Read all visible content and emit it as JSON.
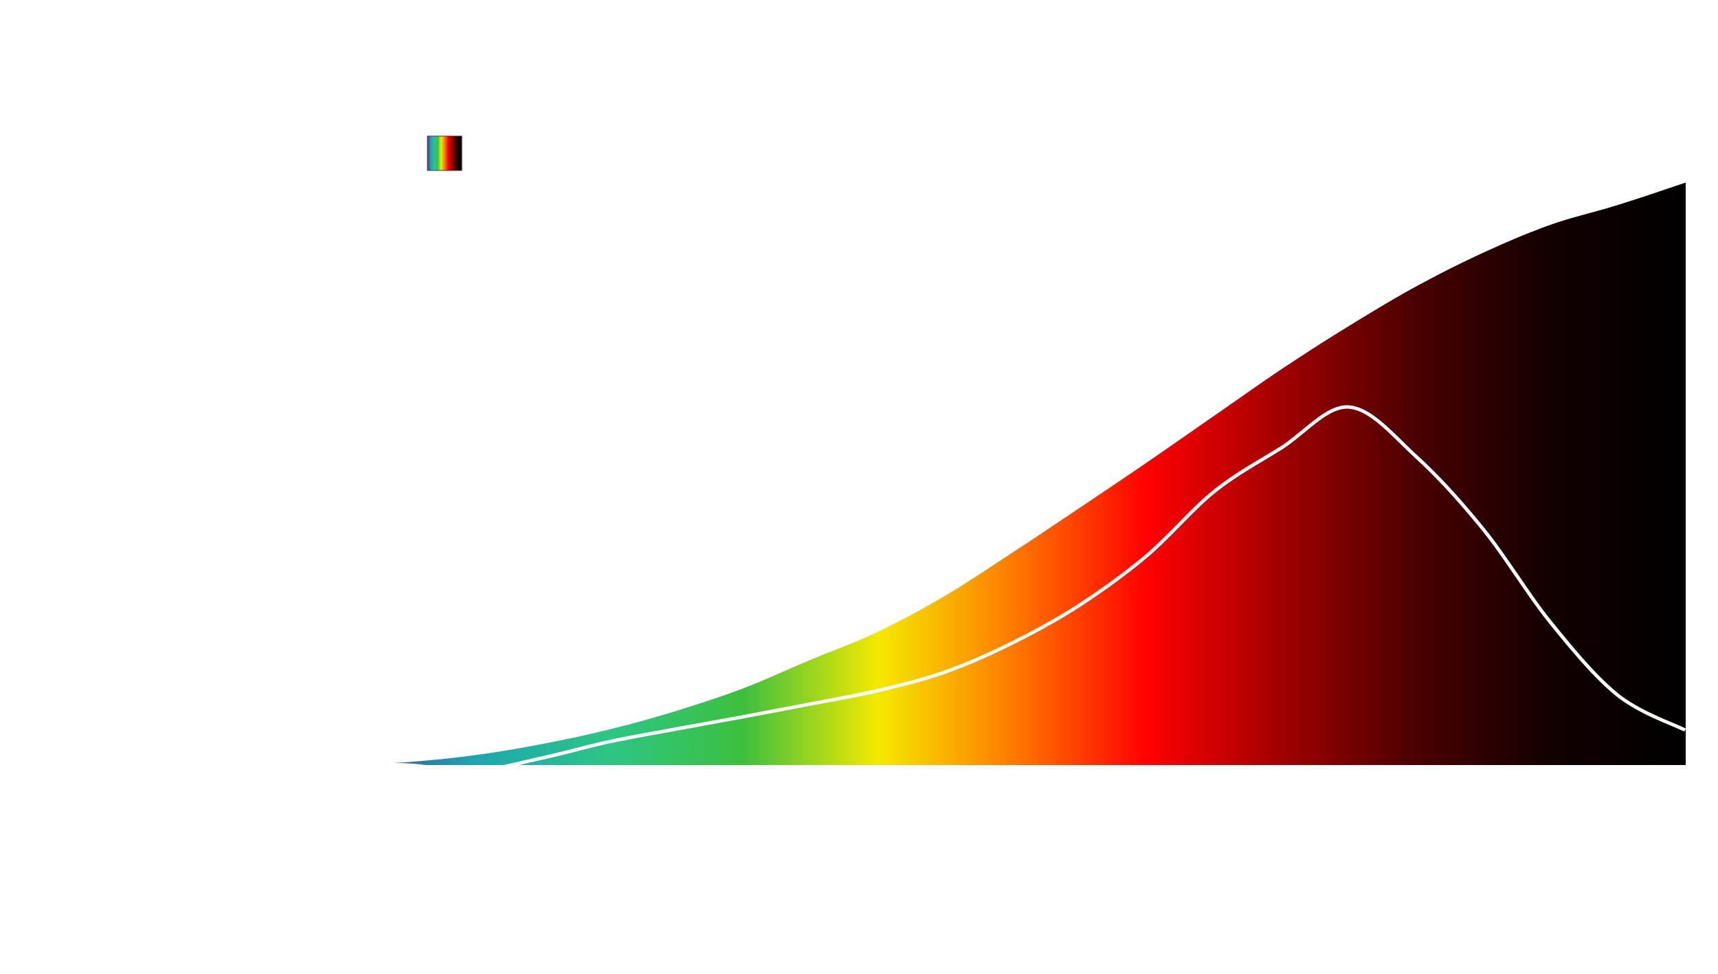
{
  "chart_data": {
    "type": "area",
    "title": "",
    "xlabel": "",
    "ylabel": "",
    "grid": false,
    "legend": "top-left",
    "x": [
      0,
      0.05,
      0.1,
      0.15,
      0.2,
      0.25,
      0.3,
      0.35,
      0.4,
      0.45,
      0.5,
      0.55,
      0.6,
      0.65,
      0.7,
      0.75,
      0.8,
      0.85,
      0.9,
      0.95,
      1.0
    ],
    "xlim": [
      0,
      1
    ],
    "ylim": [
      0,
      1
    ],
    "series": [
      {
        "values": [
          0.0,
          0.005,
          0.017,
          0.036,
          0.061,
          0.093,
          0.132,
          0.181,
          0.229,
          0.291,
          0.365,
          0.442,
          0.52,
          0.6,
          0.68,
          0.754,
          0.822,
          0.88,
          0.928,
          0.962,
          1.0
        ],
        "colormap": [
          "#3b3f8f",
          "#1ea6b0",
          "#2cc685",
          "#3ebf3e",
          "#f4ea00",
          "#ff7a00",
          "#ff0000",
          "#a00000",
          "#4a0000",
          "#120000",
          "#000000"
        ]
      },
      {
        "values": [
          0.0,
          0.0,
          -0.01,
          0.012,
          0.04,
          0.062,
          0.083,
          0.105,
          0.128,
          0.16,
          0.21,
          0.275,
          0.36,
          0.47,
          0.545,
          0.615,
          0.53,
          0.405,
          0.245,
          0.12,
          0.06
        ],
        "color": "#ffffff"
      }
    ]
  }
}
